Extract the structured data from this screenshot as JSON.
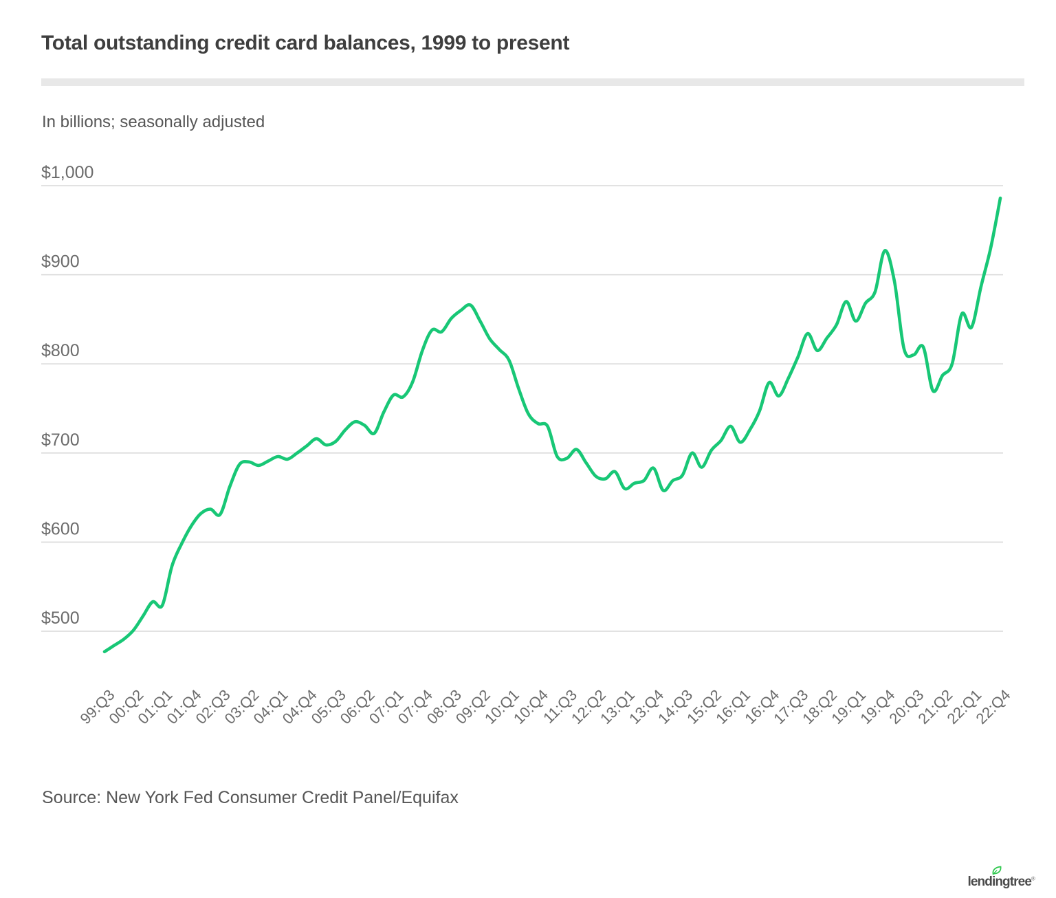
{
  "header": {
    "title": "Total outstanding credit card balances, 1999 to present",
    "subtitle": "In billions; seasonally adjusted"
  },
  "footer": {
    "source": "Source: New York Fed Consumer Credit Panel/Equifax",
    "logo_text": "lendingtree",
    "registered_mark": "®"
  },
  "colors": {
    "line": "#18c776",
    "grid": "#d9d9d9",
    "axis_text": "#6b6b6b",
    "title_text": "#3e3e3e",
    "subtitle_text": "#565656",
    "divider": "#e8e8e8",
    "logo_text": "#4a4a4a",
    "logo_leaf": "#2fc84e"
  },
  "chart_data": {
    "type": "line",
    "title": "Total outstanding credit card balances, 1999 to present",
    "units_note": "In billions; seasonally adjusted",
    "frequency": "quarterly",
    "x_start": "99:Q3",
    "x_end": "22:Q4",
    "x_tick_step": 3,
    "x_tick_labels": [
      "99:Q3",
      "00:Q2",
      "01:Q1",
      "01:Q4",
      "02:Q3",
      "03:Q2",
      "04:Q1",
      "04:Q4",
      "05:Q3",
      "06:Q2",
      "07:Q1",
      "07:Q4",
      "08:Q3",
      "09:Q2",
      "10:Q1",
      "10:Q4",
      "11:Q3",
      "12:Q2",
      "13:Q1",
      "13:Q4",
      "14:Q3",
      "15:Q2",
      "16:Q1",
      "16:Q4",
      "17:Q3",
      "18:Q2",
      "19:Q1",
      "19:Q4",
      "20:Q3",
      "21:Q2",
      "22:Q1",
      "22:Q4"
    ],
    "values": [
      477,
      484,
      491,
      501,
      517,
      533,
      529,
      573,
      598,
      618,
      632,
      637,
      631,
      662,
      687,
      690,
      686,
      691,
      696,
      693,
      700,
      708,
      716,
      709,
      713,
      726,
      735,
      731,
      722,
      746,
      765,
      763,
      780,
      815,
      838,
      836,
      851,
      860,
      866,
      848,
      828,
      816,
      804,
      772,
      744,
      733,
      730,
      696,
      694,
      704,
      689,
      674,
      671,
      679,
      660,
      666,
      669,
      683,
      658,
      669,
      675,
      700,
      684,
      703,
      714,
      730,
      712,
      726,
      747,
      779,
      764,
      784,
      808,
      834,
      815,
      829,
      844,
      870,
      848,
      868,
      881,
      927,
      893,
      817,
      810,
      819,
      770,
      787,
      800,
      856,
      841,
      887,
      930,
      986
    ],
    "y_ticks": {
      "labels": [
        "$1,000",
        "$900",
        "$800",
        "$700",
        "$600",
        "$500"
      ],
      "values": [
        1000,
        900,
        800,
        700,
        600,
        500
      ]
    },
    "ylim": [
      460,
      1010
    ],
    "grid": "horizontal",
    "legend": "none",
    "xlabel": "",
    "ylabel": ""
  }
}
